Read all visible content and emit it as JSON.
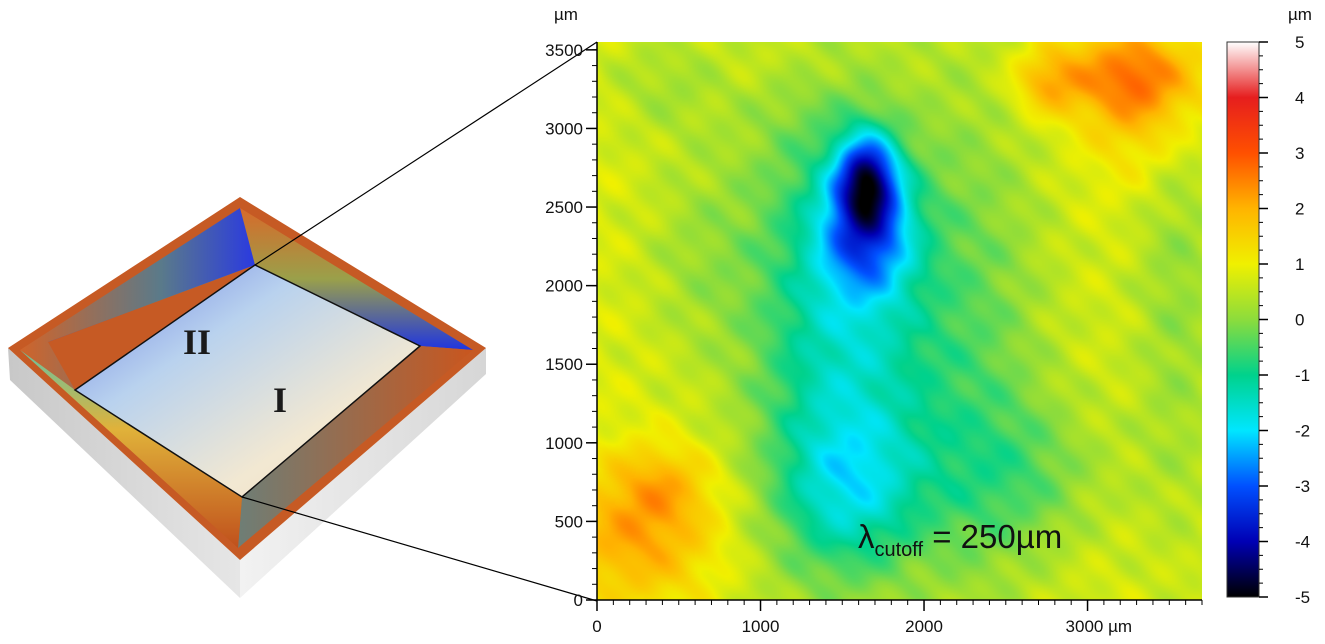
{
  "left_panel": {
    "region_labels": [
      "II",
      "I"
    ]
  },
  "chart_data": {
    "type": "heatmap",
    "title": "",
    "x_unit": "µm",
    "y_unit": "µm",
    "xlim": [
      0,
      3700
    ],
    "ylim": [
      0,
      3550
    ],
    "x_ticks": [
      0,
      1000,
      2000,
      3000
    ],
    "x_tick_labels": [
      "0",
      "1000",
      "2000",
      "3000 µm"
    ],
    "y_ticks": [
      0,
      500,
      1000,
      1500,
      2000,
      2500,
      3000,
      3500
    ],
    "y_tick_labels": [
      "0",
      "500",
      "1000",
      "1500",
      "2000",
      "2500",
      "3000",
      "3500"
    ],
    "colorbar": {
      "unit": "µm",
      "range": [
        -5,
        5
      ],
      "ticks": [
        5,
        4,
        3,
        2,
        1,
        0,
        -1,
        -2,
        -3,
        -4,
        -5
      ],
      "tick_labels": [
        "5",
        "4",
        "3",
        "2",
        "1",
        "0",
        "-1",
        "-2",
        "-3",
        "-4",
        "-5"
      ],
      "colors": [
        "#000000",
        "#0000b4",
        "#0050ff",
        "#00e6ff",
        "#00d28c",
        "#8cdc3c",
        "#f0f000",
        "#ffb400",
        "#ff5000",
        "#e61e1e",
        "#ffffff"
      ]
    },
    "annotation": {
      "symbol": "λ",
      "subscript": "cutoff",
      "text": " = 250µm"
    },
    "background_height": 0.8,
    "features": [
      {
        "x": 1650,
        "y": 2700,
        "height": -3.3,
        "sx": 130,
        "sy": 200
      },
      {
        "x": 1650,
        "y": 2350,
        "height": -2.5,
        "sx": 200,
        "sy": 280
      },
      {
        "x": 1600,
        "y": 1650,
        "height": -1.6,
        "sx": 350,
        "sy": 900
      },
      {
        "x": 1550,
        "y": 700,
        "height": -1.4,
        "sx": 300,
        "sy": 350
      },
      {
        "x": 1250,
        "y": 2000,
        "height": -0.9,
        "sx": 350,
        "sy": 1400
      },
      {
        "x": 2300,
        "y": 1600,
        "height": -1.0,
        "sx": 350,
        "sy": 1300
      },
      {
        "x": 2600,
        "y": 800,
        "height": -0.8,
        "sx": 400,
        "sy": 350
      },
      {
        "x": 600,
        "y": 2200,
        "height": -0.5,
        "sx": 250,
        "sy": 500
      },
      {
        "x": 3550,
        "y": 2000,
        "height": -0.7,
        "sx": 200,
        "sy": 1200
      },
      {
        "x": 400,
        "y": 3300,
        "height": -0.5,
        "sx": 250,
        "sy": 250
      },
      {
        "x": 3300,
        "y": 3350,
        "height": 1.8,
        "sx": 300,
        "sy": 220
      },
      {
        "x": 3350,
        "y": 3000,
        "height": 0.7,
        "sx": 250,
        "sy": 300
      },
      {
        "x": 2750,
        "y": 3300,
        "height": 1.2,
        "sx": 150,
        "sy": 150
      },
      {
        "x": 250,
        "y": 400,
        "height": 1.3,
        "sx": 350,
        "sy": 300
      },
      {
        "x": 400,
        "y": 750,
        "height": 0.8,
        "sx": 220,
        "sy": 180
      },
      {
        "x": 1200,
        "y": 3450,
        "height": 0.3,
        "sx": 250,
        "sy": 150
      }
    ]
  }
}
